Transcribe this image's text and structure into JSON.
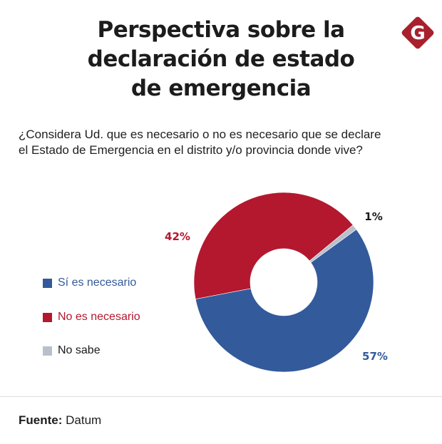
{
  "header": {
    "title_lines": [
      "Perspectiva sobre la",
      "declaración de estado",
      "de emergencia"
    ],
    "logo_letter": "G",
    "logo_color": "#a8202d"
  },
  "question_lines": [
    "¿Considera Ud. que es necesario o no es necesario que se declare",
    "el Estado de Emergencia en el distrito y/o provincia donde vive?"
  ],
  "chart_data": {
    "type": "pie",
    "variant": "donut",
    "title": "Perspectiva sobre la declaración de estado de emergencia",
    "question": "¿Considera Ud. que es necesario o no es necesario que se declare el Estado de Emergencia en el distrito y/o provincia donde vive?",
    "categories": [
      "Sí es necesario",
      "No es necesario",
      "No sabe"
    ],
    "values": [
      57,
      42,
      1
    ],
    "unit": "%",
    "labels": [
      "57%",
      "42%",
      "1%"
    ],
    "colors": [
      "#335a9b",
      "#b3182e",
      "#b9c0cb"
    ],
    "label_colors": [
      "#335a9b",
      "#b3182e",
      "#1a1a1a"
    ],
    "legend_position": "left"
  },
  "footer": {
    "source_label": "Fuente:",
    "source_value": "Datum"
  }
}
